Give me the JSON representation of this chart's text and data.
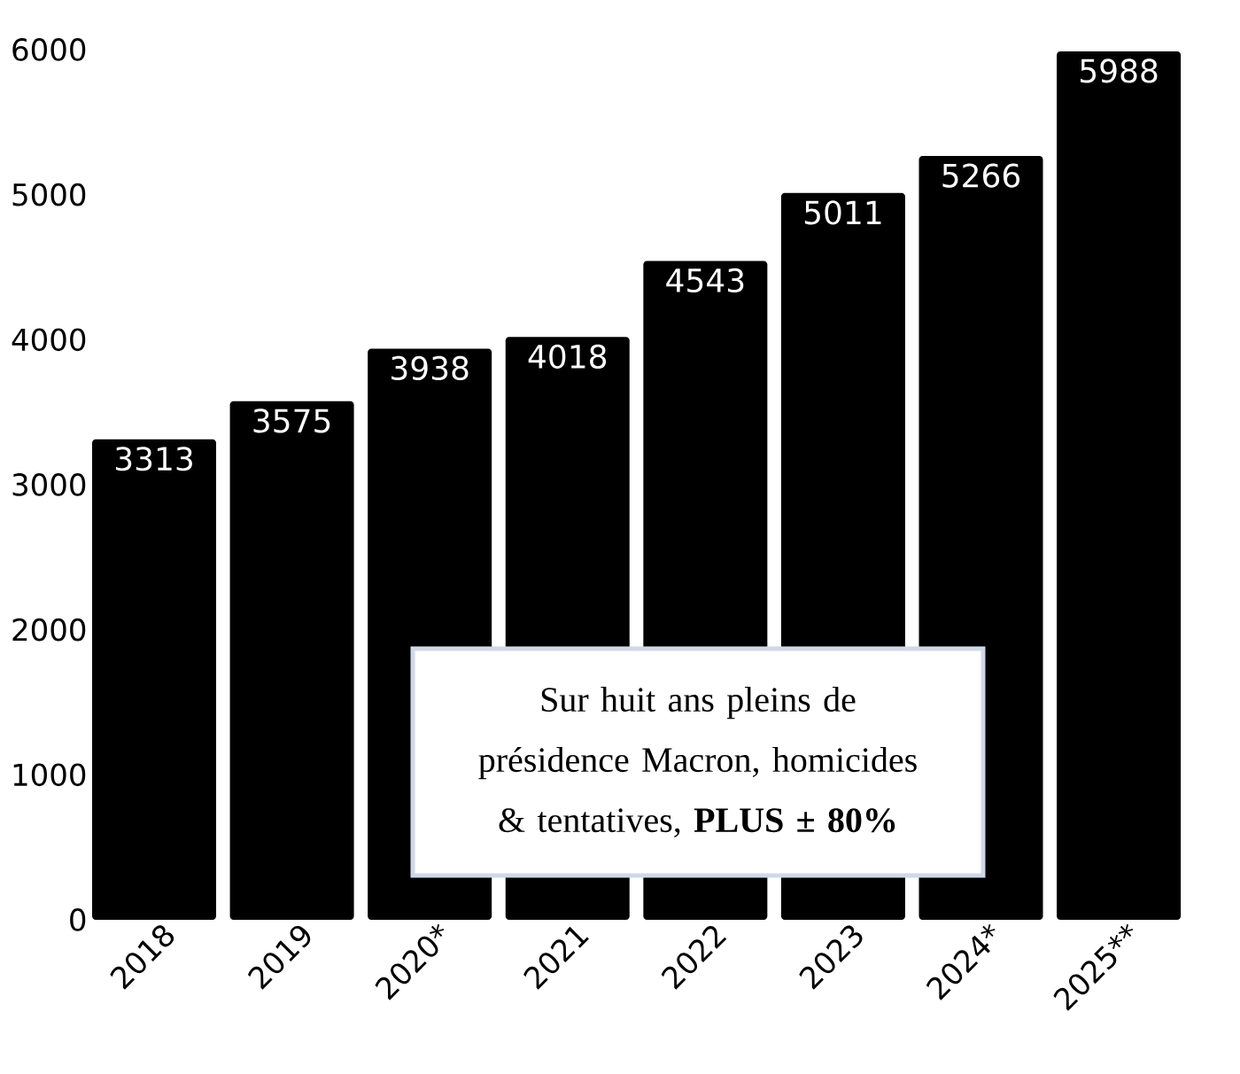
{
  "chart_data": {
    "type": "bar",
    "categories": [
      "2018",
      "2019",
      "2020*",
      "2021",
      "2022",
      "2023",
      "2024*",
      "2025**"
    ],
    "values": [
      3313,
      3575,
      3938,
      4018,
      4543,
      5011,
      5266,
      5988
    ],
    "color": "#000000",
    "ylim": [
      0,
      6000
    ],
    "yticks": [
      0,
      1000,
      2000,
      3000,
      4000,
      5000,
      6000
    ],
    "data_labels": true,
    "annotations": [
      "Sur huit ans pleins de présidence Macron, homicides & tentatives, **PLUS ± 80%**"
    ]
  }
}
